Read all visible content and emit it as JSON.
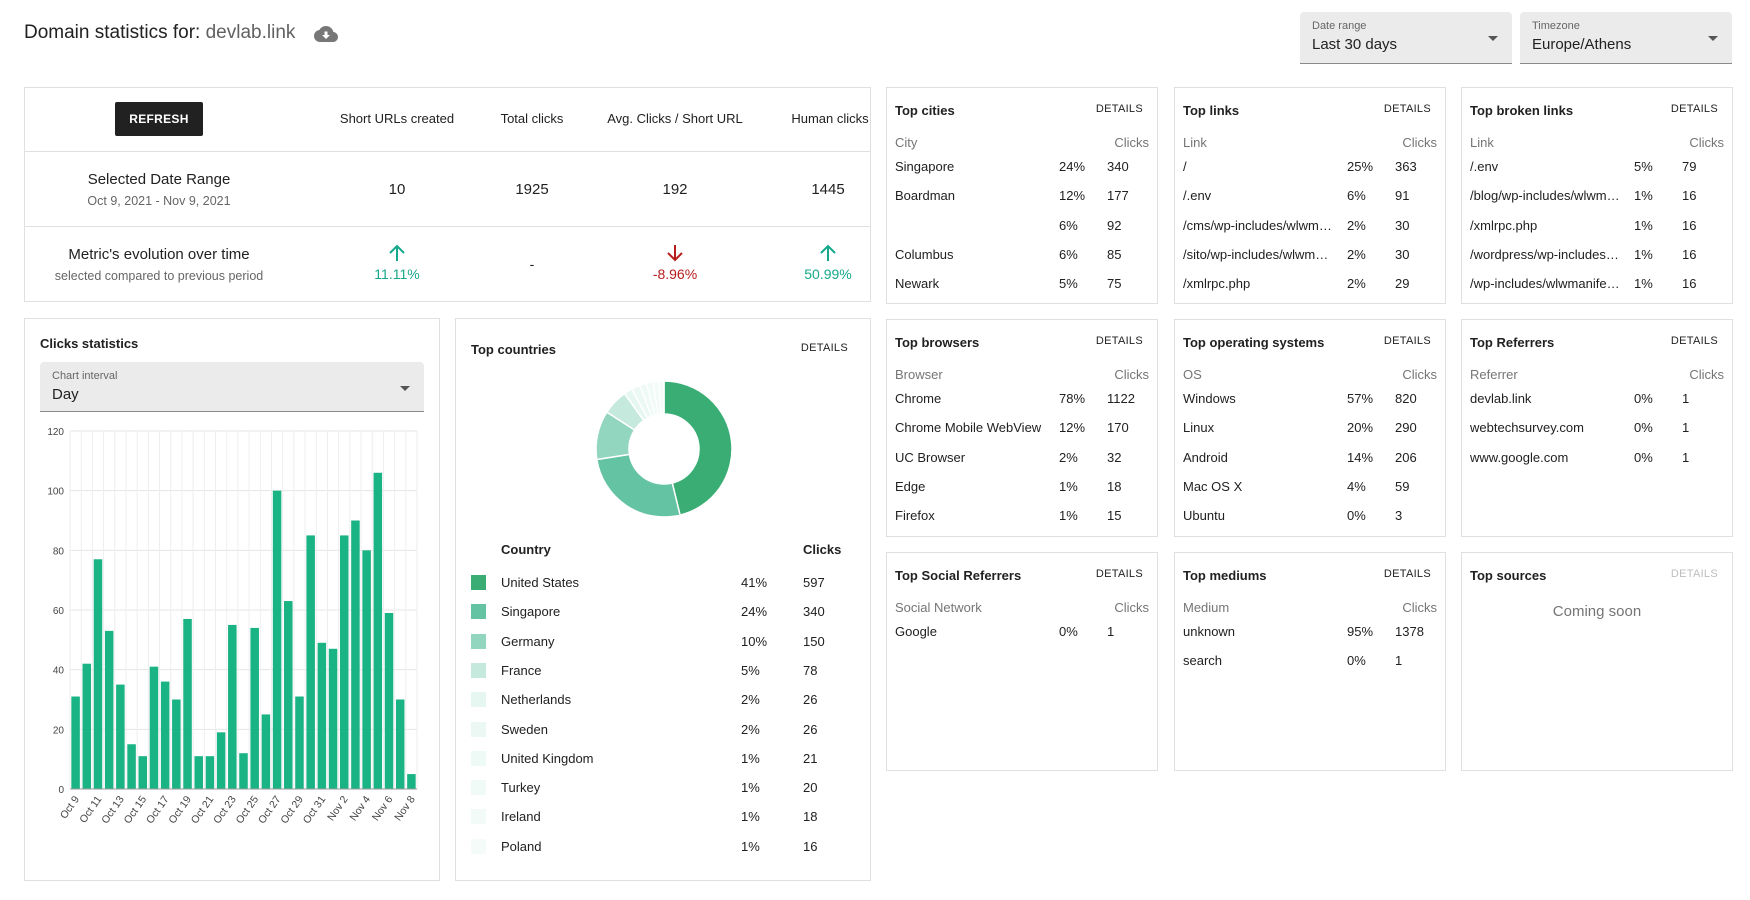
{
  "header": {
    "title_prefix": "Domain statistics for:",
    "domain": "devlab.link"
  },
  "date_range": {
    "label": "Date range",
    "value": "Last 30 days"
  },
  "timezone": {
    "label": "Timezone",
    "value": "Europe/Athens"
  },
  "summary": {
    "refresh_label": "REFRESH",
    "columns": [
      "Short URLs created",
      "Total clicks",
      "Avg. Clicks / Short URL",
      "Human clicks"
    ],
    "range_label": "Selected Date Range",
    "range_dates": "Oct 9, 2021 - Nov 9, 2021",
    "range_values": [
      "10",
      "1925",
      "192",
      "1445"
    ],
    "evo_label": "Metric's evolution over time",
    "evo_sub": "selected compared to previous period",
    "evo_values": [
      "11.11%",
      "-",
      "-8.96%",
      "50.99%"
    ],
    "evo_dirs": [
      "up",
      "none",
      "down",
      "up"
    ]
  },
  "clicks_stats": {
    "title": "Clicks statistics",
    "interval_label": "Chart interval",
    "interval_value": "Day"
  },
  "chart_data": {
    "type": "bar",
    "categories": [
      "Oct 9",
      "Oct 10",
      "Oct 11",
      "Oct 12",
      "Oct 13",
      "Oct 14",
      "Oct 15",
      "Oct 16",
      "Oct 17",
      "Oct 18",
      "Oct 19",
      "Oct 20",
      "Oct 21",
      "Oct 22",
      "Oct 23",
      "Oct 24",
      "Oct 25",
      "Oct 26",
      "Oct 27",
      "Oct 28",
      "Oct 29",
      "Oct 30",
      "Oct 31",
      "Nov 1",
      "Nov 2",
      "Nov 3",
      "Nov 4",
      "Nov 5",
      "Nov 6",
      "Nov 7",
      "Nov 8"
    ],
    "tick_labels": [
      "Oct 9",
      "Oct 11",
      "Oct 13",
      "Oct 15",
      "Oct 17",
      "Oct 19",
      "Oct 21",
      "Oct 23",
      "Oct 25",
      "Oct 27",
      "Oct 29",
      "Oct 31",
      "Nov 2",
      "Nov 4",
      "Nov 6",
      "Nov 8"
    ],
    "values": [
      31,
      42,
      77,
      53,
      35,
      15,
      11,
      41,
      36,
      30,
      57,
      11,
      11,
      19,
      55,
      12,
      54,
      25,
      100,
      63,
      31,
      85,
      49,
      47,
      85,
      90,
      80,
      106,
      59,
      30,
      5
    ],
    "ylim": [
      0,
      120
    ],
    "yticks": [
      0,
      20,
      40,
      60,
      80,
      100,
      120
    ],
    "color": "#1ab383",
    "grid": true
  },
  "countries": {
    "title": "Top countries",
    "details": "DETAILS",
    "headers": [
      "Country",
      "Clicks"
    ],
    "rows": [
      {
        "name": "United States",
        "pct": "41%",
        "clicks": "597",
        "color": "#3aad74"
      },
      {
        "name": "Singapore",
        "pct": "24%",
        "clicks": "340",
        "color": "#63c3a2"
      },
      {
        "name": "Germany",
        "pct": "10%",
        "clicks": "150",
        "color": "#93d6c0"
      },
      {
        "name": "France",
        "pct": "5%",
        "clicks": "78",
        "color": "#c6e9de"
      },
      {
        "name": "Netherlands",
        "pct": "2%",
        "clicks": "26",
        "color": "#e6f6f0"
      },
      {
        "name": "Sweden",
        "pct": "2%",
        "clicks": "26",
        "color": "#ecf8f3"
      },
      {
        "name": "United Kingdom",
        "pct": "1%",
        "clicks": "21",
        "color": "#eefaf5"
      },
      {
        "name": "Turkey",
        "pct": "1%",
        "clicks": "20",
        "color": "#f0faf6"
      },
      {
        "name": "Ireland",
        "pct": "1%",
        "clicks": "18",
        "color": "#f2fbf7"
      },
      {
        "name": "Poland",
        "pct": "1%",
        "clicks": "16",
        "color": "#f4fbf8"
      }
    ],
    "pie_values": [
      597,
      340,
      150,
      78,
      26,
      26,
      21,
      20,
      18,
      16
    ]
  },
  "tables": [
    {
      "key": "cities",
      "title": "Top cities",
      "details": "DETAILS",
      "h1": "City",
      "h2": "Clicks",
      "rows": [
        [
          "Singapore",
          "24%",
          "340"
        ],
        [
          "Boardman",
          "12%",
          "177"
        ],
        [
          "",
          "6%",
          "92"
        ],
        [
          "Columbus",
          "6%",
          "85"
        ],
        [
          "Newark",
          "5%",
          "75"
        ]
      ]
    },
    {
      "key": "links",
      "title": "Top links",
      "details": "DETAILS",
      "h1": "Link",
      "h2": "Clicks",
      "rows": [
        [
          "/",
          "25%",
          "363"
        ],
        [
          "/.env",
          "6%",
          "91"
        ],
        [
          "/cms/wp-includes/wlwmanifest.xml",
          "2%",
          "30"
        ],
        [
          "/sito/wp-includes/wlwmanifest.xml",
          "2%",
          "30"
        ],
        [
          "/xmlrpc.php",
          "2%",
          "29"
        ]
      ]
    },
    {
      "key": "broken",
      "title": "Top broken links",
      "details": "DETAILS",
      "h1": "Link",
      "h2": "Clicks",
      "rows": [
        [
          "/.env",
          "5%",
          "79"
        ],
        [
          "/blog/wp-includes/wlwmanifest.xml",
          "1%",
          "16"
        ],
        [
          "/xmlrpc.php",
          "1%",
          "16"
        ],
        [
          "/wordpress/wp-includes/wlwmanifest.xml",
          "1%",
          "16"
        ],
        [
          "/wp-includes/wlwmanifest.xml",
          "1%",
          "16"
        ]
      ]
    },
    {
      "key": "browsers",
      "title": "Top browsers",
      "details": "DETAILS",
      "h1": "Browser",
      "h2": "Clicks",
      "rows": [
        [
          "Chrome",
          "78%",
          "1122"
        ],
        [
          "Chrome Mobile WebView",
          "12%",
          "170"
        ],
        [
          "UC Browser",
          "2%",
          "32"
        ],
        [
          "Edge",
          "1%",
          "18"
        ],
        [
          "Firefox",
          "1%",
          "15"
        ]
      ]
    },
    {
      "key": "os",
      "title": "Top operating systems",
      "details": "DETAILS",
      "h1": "OS",
      "h2": "Clicks",
      "rows": [
        [
          "Windows",
          "57%",
          "820"
        ],
        [
          "Linux",
          "20%",
          "290"
        ],
        [
          "Android",
          "14%",
          "206"
        ],
        [
          "Mac OS X",
          "4%",
          "59"
        ],
        [
          "Ubuntu",
          "0%",
          "3"
        ]
      ]
    },
    {
      "key": "referrers",
      "title": "Top Referrers",
      "details": "DETAILS",
      "h1": "Referrer",
      "h2": "Clicks",
      "rows": [
        [
          "devlab.link",
          "0%",
          "1"
        ],
        [
          "webtechsurvey.com",
          "0%",
          "1"
        ],
        [
          "www.google.com",
          "0%",
          "1"
        ]
      ]
    },
    {
      "key": "social",
      "title": "Top Social Referrers",
      "details": "DETAILS",
      "h1": "Social Network",
      "h2": "Clicks",
      "rows": [
        [
          "Google",
          "0%",
          "1"
        ]
      ]
    },
    {
      "key": "mediums",
      "title": "Top mediums",
      "details": "DETAILS",
      "h1": "Medium",
      "h2": "Clicks",
      "rows": [
        [
          "unknown",
          "95%",
          "1378"
        ],
        [
          "search",
          "0%",
          "1"
        ]
      ]
    }
  ],
  "sources": {
    "title": "Top sources",
    "details": "DETAILS",
    "soon": "Coming soon"
  },
  "colors": {
    "accent": "#1ab383",
    "positive": "#16a88a",
    "negative": "#b71c1c",
    "button": "#212121"
  }
}
